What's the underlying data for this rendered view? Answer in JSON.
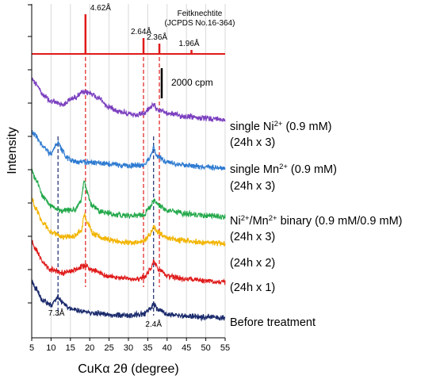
{
  "chart_data": {
    "type": "line",
    "xlabel": "CuKα 2θ (degree)",
    "ylabel": "Intensity",
    "xlim": [
      5,
      55
    ],
    "xticks": [
      5,
      10,
      15,
      20,
      25,
      30,
      35,
      40,
      45,
      50,
      55
    ],
    "grid": true,
    "reference": {
      "name": "Feitknechtite",
      "source": "(JCPDS No.16-364)",
      "peaks": [
        {
          "x": 18.9,
          "rel": 1.0,
          "label": "4.62Å"
        },
        {
          "x": 33.9,
          "rel": 0.4,
          "label": "2.64Å"
        },
        {
          "x": 38.0,
          "rel": 0.26,
          "label": "2.36Å"
        },
        {
          "x": 46.3,
          "rel": 0.1,
          "label": "1.96Å"
        }
      ]
    },
    "scale_bar": {
      "label": "2000 cpm"
    },
    "series": [
      {
        "name": "single Ni²⁺ (0.9 mM)",
        "label_main": "single Ni",
        "label_sup": "2+",
        "label_rest": " (0.9 mM)",
        "label_sub": "(24h x 3)",
        "color": "#7b3fbf",
        "profile": [
          [
            5,
            0.92
          ],
          [
            6,
            0.8
          ],
          [
            8,
            0.55
          ],
          [
            10,
            0.42
          ],
          [
            13,
            0.36
          ],
          [
            16,
            0.5
          ],
          [
            18,
            0.6
          ],
          [
            20,
            0.6
          ],
          [
            22,
            0.5
          ],
          [
            25,
            0.3
          ],
          [
            28,
            0.2
          ],
          [
            32,
            0.12
          ],
          [
            34,
            0.16
          ],
          [
            35.5,
            0.28
          ],
          [
            36.5,
            0.33
          ],
          [
            38,
            0.24
          ],
          [
            40,
            0.17
          ],
          [
            45,
            0.1
          ],
          [
            50,
            0.06
          ],
          [
            55,
            0.04
          ]
        ]
      },
      {
        "name": "single Mn²⁺ (0.9 mM)",
        "label_main": "single Mn",
        "label_sup": "2+",
        "label_rest": " (0.9 mM)",
        "label_sub": "(24h x 3)",
        "color": "#2e7bd1",
        "profile": [
          [
            5,
            0.7
          ],
          [
            6,
            0.62
          ],
          [
            8,
            0.38
          ],
          [
            10,
            0.22
          ],
          [
            11,
            0.38
          ],
          [
            11.8,
            0.48
          ],
          [
            13,
            0.3
          ],
          [
            14,
            0.14
          ],
          [
            17,
            0.06
          ],
          [
            20,
            0.06
          ],
          [
            25,
            0.02
          ],
          [
            30,
            -0.02
          ],
          [
            34,
            0.0
          ],
          [
            35.5,
            0.14
          ],
          [
            36.5,
            0.36
          ],
          [
            37.5,
            0.18
          ],
          [
            40,
            0.06
          ],
          [
            45,
            0.0
          ],
          [
            50,
            -0.04
          ],
          [
            55,
            -0.06
          ]
        ]
      },
      {
        "name": "Ni²⁺/Mn²⁺ binary (0.9 mM/0.9 mM)",
        "label_main": "Ni",
        "label_sup": "2+",
        "label_rest": "/Mn",
        "label_sup2": "2+",
        "label_rest2": " binary (0.9 mM/0.9 mM)",
        "label_sub": "(24h x 3)",
        "color": "#22a84a",
        "profile": [
          [
            5,
            0.95
          ],
          [
            6,
            0.75
          ],
          [
            8,
            0.4
          ],
          [
            10,
            0.2
          ],
          [
            13,
            0.1
          ],
          [
            16,
            0.12
          ],
          [
            17.6,
            0.28
          ],
          [
            18.6,
            0.7
          ],
          [
            19.3,
            0.5
          ],
          [
            20.5,
            0.22
          ],
          [
            23,
            0.08
          ],
          [
            27,
            0.02
          ],
          [
            30,
            0.0
          ],
          [
            34,
            0.02
          ],
          [
            35.5,
            0.18
          ],
          [
            36.5,
            0.3
          ],
          [
            38,
            0.22
          ],
          [
            40,
            0.1
          ],
          [
            45,
            0.04
          ],
          [
            50,
            0.0
          ],
          [
            55,
            -0.02
          ]
        ]
      },
      {
        "name": "(24h x 2)",
        "label_main": "(24h x 2)",
        "color": "#f2b400",
        "profile": [
          [
            5,
            0.92
          ],
          [
            6,
            0.7
          ],
          [
            8,
            0.38
          ],
          [
            10,
            0.2
          ],
          [
            13,
            0.1
          ],
          [
            16,
            0.12
          ],
          [
            17.8,
            0.24
          ],
          [
            18.6,
            0.56
          ],
          [
            19.4,
            0.4
          ],
          [
            21,
            0.16
          ],
          [
            24,
            0.06
          ],
          [
            28,
            0.0
          ],
          [
            32,
            -0.02
          ],
          [
            34,
            0.02
          ],
          [
            35.5,
            0.14
          ],
          [
            36.5,
            0.3
          ],
          [
            38,
            0.18
          ],
          [
            40,
            0.08
          ],
          [
            45,
            0.02
          ],
          [
            50,
            -0.02
          ],
          [
            55,
            -0.04
          ]
        ]
      },
      {
        "name": "(24h x 1)",
        "label_main": "(24h x 1)",
        "color": "#e01b1b",
        "profile": [
          [
            5,
            0.8
          ],
          [
            6,
            0.62
          ],
          [
            8,
            0.34
          ],
          [
            10,
            0.2
          ],
          [
            13,
            0.14
          ],
          [
            16,
            0.18
          ],
          [
            18,
            0.26
          ],
          [
            19,
            0.27
          ],
          [
            21,
            0.18
          ],
          [
            24,
            0.08
          ],
          [
            28,
            0.02
          ],
          [
            32,
            0.0
          ],
          [
            34,
            0.04
          ],
          [
            35.5,
            0.18
          ],
          [
            36.5,
            0.36
          ],
          [
            38,
            0.18
          ],
          [
            40,
            0.06
          ],
          [
            45,
            0.0
          ],
          [
            50,
            -0.04
          ],
          [
            55,
            -0.06
          ]
        ]
      },
      {
        "name": "Before treatment",
        "label_main": "Before treatment",
        "color": "#1a2a6c",
        "profile": [
          [
            5,
            0.68
          ],
          [
            6,
            0.52
          ],
          [
            8,
            0.26
          ],
          [
            10,
            0.16
          ],
          [
            11.2,
            0.28
          ],
          [
            11.8,
            0.34
          ],
          [
            13,
            0.22
          ],
          [
            15,
            0.1
          ],
          [
            18,
            0.04
          ],
          [
            22,
            0.0
          ],
          [
            26,
            -0.04
          ],
          [
            30,
            -0.04
          ],
          [
            34,
            -0.02
          ],
          [
            35.8,
            0.1
          ],
          [
            36.5,
            0.2
          ],
          [
            37.5,
            0.08
          ],
          [
            40,
            -0.02
          ],
          [
            45,
            -0.06
          ],
          [
            50,
            -0.08
          ],
          [
            55,
            -0.1
          ]
        ]
      }
    ],
    "annotations": [
      {
        "x": 11.8,
        "label": "7.3Å",
        "color": "#1a2a6c",
        "style": "dashed"
      },
      {
        "x": 36.5,
        "label": "2.4Å",
        "color": "#1a2a6c",
        "style": "dashed"
      },
      {
        "x": 18.9,
        "color": "#e01b1b",
        "style": "dashed"
      },
      {
        "x": 33.9,
        "color": "#e01b1b",
        "style": "dashed"
      },
      {
        "x": 38.0,
        "color": "#e01b1b",
        "style": "dashed"
      }
    ]
  }
}
